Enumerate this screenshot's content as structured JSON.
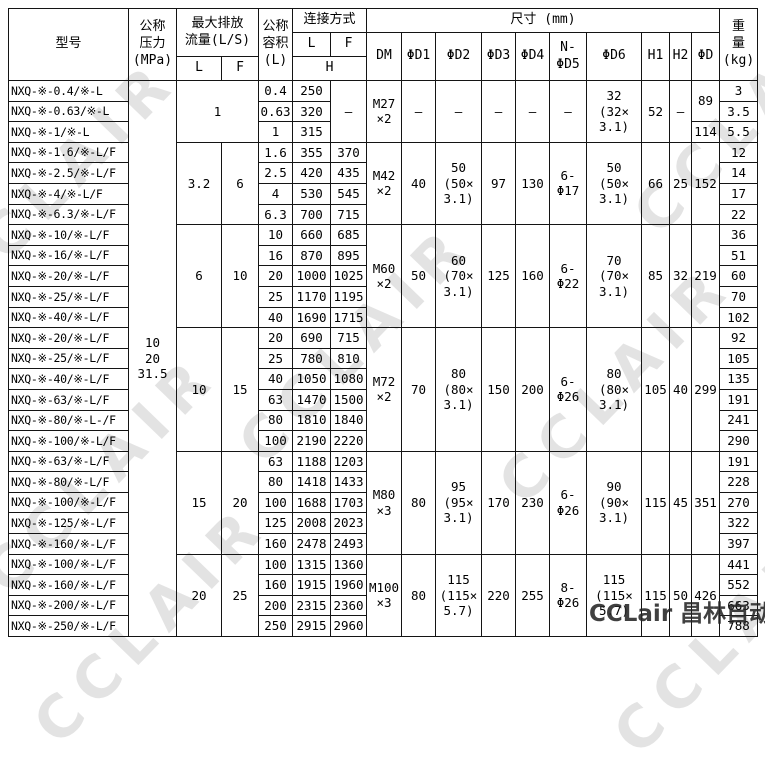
{
  "watermark": {
    "light_text": "CCLAIR",
    "dark_text": "CCLair 昌林自动化"
  },
  "table": {
    "headers": {
      "model": "型号",
      "pressure": "公称\n压力\n(MPa)",
      "flow": "最大排放\n流量(L/S)",
      "flow_l": "L",
      "flow_f": "F",
      "volume": "公称\n容积\n(L)",
      "connection": "连接方式",
      "conn_l": "L",
      "conn_f": "F",
      "conn_h": "H",
      "size": "尺寸 (mm)",
      "size_sub": [
        "DM",
        "ΦD1",
        "ΦD2",
        "ΦD3",
        "ΦD4",
        "N-\nΦD5",
        "ΦD6",
        "H1",
        "H2",
        "ΦD"
      ],
      "weight": "重\n量\n(kg)"
    },
    "pressure_value": "10\n20\n31.5",
    "groups": [
      {
        "flow_merged": "1",
        "f_merged": "–",
        "dims": {
          "dm": "M27\n×2",
          "d1": "–",
          "d2": "–",
          "d3": "–",
          "d4": "–",
          "d5": "–",
          "d6": "32\n(32×\n3.1)",
          "h1": "52",
          "h2": "–"
        },
        "d_col": [
          {
            "v": "89",
            "rs": 2
          },
          {
            "v": "114",
            "rs": 1
          }
        ],
        "rows": [
          {
            "model": "NXQ-※-0.4/※-L",
            "vol": "0.4",
            "l": "250",
            "w": "3"
          },
          {
            "model": "NXQ-※-0.63/※-L",
            "vol": "0.63",
            "l": "320",
            "w": "3.5"
          },
          {
            "model": "NXQ-※-1/※-L",
            "vol": "1",
            "l": "315",
            "w": "5.5"
          }
        ]
      },
      {
        "flow_l": "3.2",
        "flow_f": "6",
        "dims": {
          "dm": "M42\n×2",
          "d1": "40",
          "d2": "50\n(50×\n3.1)",
          "d3": "97",
          "d4": "130",
          "d5": "6-\nΦ17",
          "d6": "50\n(50×\n3.1)",
          "h1": "66",
          "h2": "25"
        },
        "d_col": [
          {
            "v": "152",
            "rs": 4
          }
        ],
        "rows": [
          {
            "model": "NXQ-※-1.6/※-L/F",
            "vol": "1.6",
            "l": "355",
            "f": "370",
            "w": "12"
          },
          {
            "model": "NXQ-※-2.5/※-L/F",
            "vol": "2.5",
            "l": "420",
            "f": "435",
            "w": "14"
          },
          {
            "model": "NXQ-※-4/※-L/F",
            "vol": "4",
            "l": "530",
            "f": "545",
            "w": "17"
          },
          {
            "model": "NXQ-※-6.3/※-L/F",
            "vol": "6.3",
            "l": "700",
            "f": "715",
            "w": "22"
          }
        ]
      },
      {
        "flow_l": "6",
        "flow_f": "10",
        "dims": {
          "dm": "M60\n×2",
          "d1": "50",
          "d2": "60\n(70×\n3.1)",
          "d3": "125",
          "d4": "160",
          "d5": "6-\nΦ22",
          "d6": "70\n(70×\n3.1)",
          "h1": "85",
          "h2": "32"
        },
        "d_col": [
          {
            "v": "219",
            "rs": 5
          }
        ],
        "rows": [
          {
            "model": "NXQ-※-10/※-L/F",
            "vol": "10",
            "l": "660",
            "f": "685",
            "w": "36"
          },
          {
            "model": "NXQ-※-16/※-L/F",
            "vol": "16",
            "l": "870",
            "f": "895",
            "w": "51"
          },
          {
            "model": "NXQ-※-20/※-L/F",
            "vol": "20",
            "l": "1000",
            "f": "1025",
            "w": "60"
          },
          {
            "model": "NXQ-※-25/※-L/F",
            "vol": "25",
            "l": "1170",
            "f": "1195",
            "w": "70"
          },
          {
            "model": "NXQ-※-40/※-L/F",
            "vol": "40",
            "l": "1690",
            "f": "1715",
            "w": "102"
          }
        ]
      },
      {
        "flow_l": "10",
        "flow_f": "15",
        "dims": {
          "dm": "M72\n×2",
          "d1": "70",
          "d2": "80\n(80×\n3.1)",
          "d3": "150",
          "d4": "200",
          "d5": "6-\nΦ26",
          "d6": "80\n(80×\n3.1)",
          "h1": "105",
          "h2": "40"
        },
        "d_col": [
          {
            "v": "299",
            "rs": 6
          }
        ],
        "rows": [
          {
            "model": "NXQ-※-20/※-L/F",
            "vol": "20",
            "l": "690",
            "f": "715",
            "w": "92"
          },
          {
            "model": "NXQ-※-25/※-L/F",
            "vol": "25",
            "l": "780",
            "f": "810",
            "w": "105"
          },
          {
            "model": "NXQ-※-40/※-L/F",
            "vol": "40",
            "l": "1050",
            "f": "1080",
            "w": "135"
          },
          {
            "model": "NXQ-※-63/※-L/F",
            "vol": "63",
            "l": "1470",
            "f": "1500",
            "w": "191"
          },
          {
            "model": "NXQ-※-80/※-L-/F",
            "vol": "80",
            "l": "1810",
            "f": "1840",
            "w": "241"
          },
          {
            "model": "NXQ-※-100/※-L/F",
            "vol": "100",
            "l": "2190",
            "f": "2220",
            "w": "290"
          }
        ]
      },
      {
        "flow_l": "15",
        "flow_f": "20",
        "dims": {
          "dm": "M80\n×3",
          "d1": "80",
          "d2": "95\n(95×\n3.1)",
          "d3": "170",
          "d4": "230",
          "d5": "6-\nΦ26",
          "d6": "90\n(90×\n3.1)",
          "h1": "115",
          "h2": "45"
        },
        "d_col": [
          {
            "v": "351",
            "rs": 5
          }
        ],
        "rows": [
          {
            "model": "NXQ-※-63/※-L/F",
            "vol": "63",
            "l": "1188",
            "f": "1203",
            "w": "191"
          },
          {
            "model": "NXQ-※-80/※-L/F",
            "vol": "80",
            "l": "1418",
            "f": "1433",
            "w": "228"
          },
          {
            "model": "NXQ-※-100/※-L/F",
            "vol": "100",
            "l": "1688",
            "f": "1703",
            "w": "270"
          },
          {
            "model": "NXQ-※-125/※-L/F",
            "vol": "125",
            "l": "2008",
            "f": "2023",
            "w": "322"
          },
          {
            "model": "NXQ-※-160/※-L/F",
            "vol": "160",
            "l": "2478",
            "f": "2493",
            "w": "397"
          }
        ]
      },
      {
        "flow_l": "20",
        "flow_f": "25",
        "dims": {
          "dm": "M100\n×3",
          "d1": "80",
          "d2": "115\n(115×\n5.7)",
          "d3": "220",
          "d4": "255",
          "d5": "8-\nΦ26",
          "d6": "115\n(115×\n5.7)",
          "h1": "115",
          "h2": "50"
        },
        "d_col": [
          {
            "v": "426",
            "rs": 4
          }
        ],
        "rows": [
          {
            "model": "NXQ-※-100/※-L/F",
            "vol": "100",
            "l": "1315",
            "f": "1360",
            "w": "441"
          },
          {
            "model": "NXQ-※-160/※-L/F",
            "vol": "160",
            "l": "1915",
            "f": "1960",
            "w": "552"
          },
          {
            "model": "NXQ-※-200/※-L/F",
            "vol": "200",
            "l": "2315",
            "f": "2360",
            "w": "663"
          },
          {
            "model": "NXQ-※-250/※-L/F",
            "vol": "250",
            "l": "2915",
            "f": "2960",
            "w": "788"
          }
        ]
      }
    ]
  }
}
